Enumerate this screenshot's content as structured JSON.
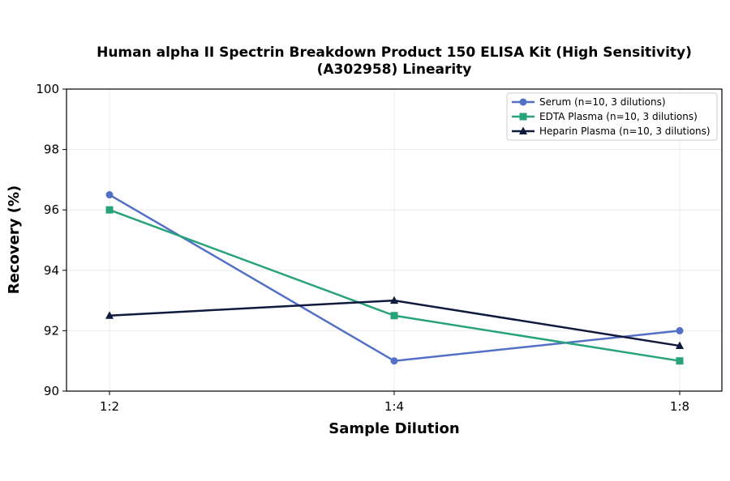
{
  "chart_data": {
    "type": "line",
    "title_line1": "Human alpha II Spectrin Breakdown Product 150 ELISA Kit (High Sensitivity)",
    "title_line2": "(A302958) Linearity",
    "xlabel": "Sample Dilution",
    "ylabel": "Recovery (%)",
    "categories": [
      "1:2",
      "1:4",
      "1:8"
    ],
    "ylim": [
      90,
      100
    ],
    "yticks": [
      90,
      92,
      94,
      96,
      98,
      100
    ],
    "grid": true,
    "legend_position": "top-right",
    "series": [
      {
        "name": "Serum (n=10, 3 dilutions)",
        "values": [
          96.5,
          91.0,
          92.0
        ],
        "color": "#5470c6",
        "marker": "circle"
      },
      {
        "name": "EDTA Plasma (n=10, 3 dilutions)",
        "values": [
          96.0,
          92.5,
          91.0
        ],
        "color": "#26a37a",
        "marker": "square"
      },
      {
        "name": "Heparin Plasma (n=10, 3 dilutions)",
        "values": [
          92.5,
          93.0,
          91.5
        ],
        "color": "#0f1a3c",
        "marker": "triangle"
      }
    ]
  }
}
